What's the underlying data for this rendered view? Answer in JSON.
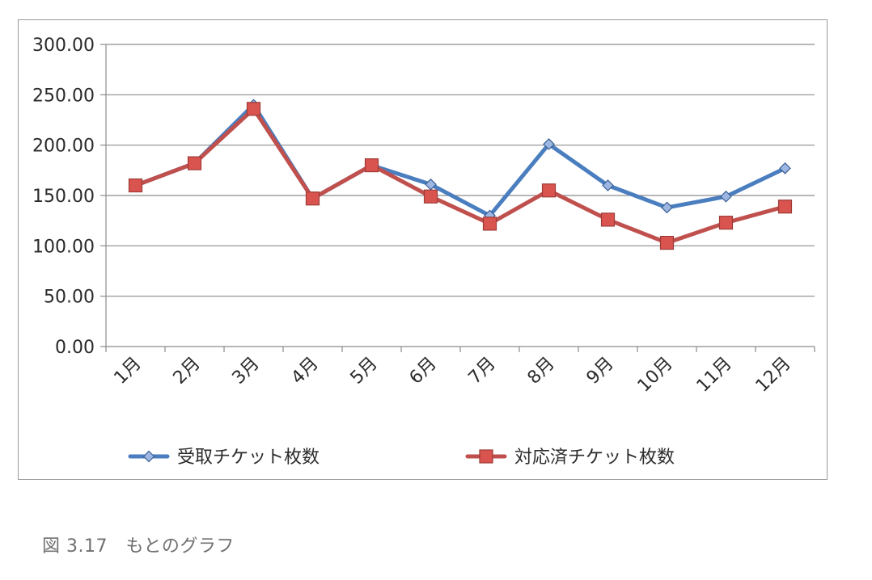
{
  "chart_data": {
    "type": "line",
    "categories": [
      "1月",
      "2月",
      "3月",
      "4月",
      "5月",
      "6月",
      "7月",
      "8月",
      "9月",
      "10月",
      "11月",
      "12月"
    ],
    "series": [
      {
        "name": "受取チケット枚数",
        "color": "#4a7ebf",
        "marker": "diamond",
        "marker_color": "#9db7e2",
        "values": [
          160,
          182,
          240,
          147,
          180,
          161,
          130,
          201,
          160,
          138,
          149,
          177
        ]
      },
      {
        "name": "対応済チケット枚数",
        "color": "#c0504d",
        "marker": "square",
        "marker_color": "#d9534f",
        "values": [
          160,
          182,
          236,
          147,
          180,
          149,
          122,
          155,
          126,
          103,
          123,
          139
        ]
      }
    ],
    "yticks": [
      "300.00",
      "250.00",
      "200.00",
      "150.00",
      "100.00",
      "50.00",
      "0.00"
    ],
    "ylim": [
      0,
      300
    ],
    "grid": true,
    "legend_position": "bottom"
  },
  "caption": {
    "text": "図 3.17　もとのグラフ"
  }
}
